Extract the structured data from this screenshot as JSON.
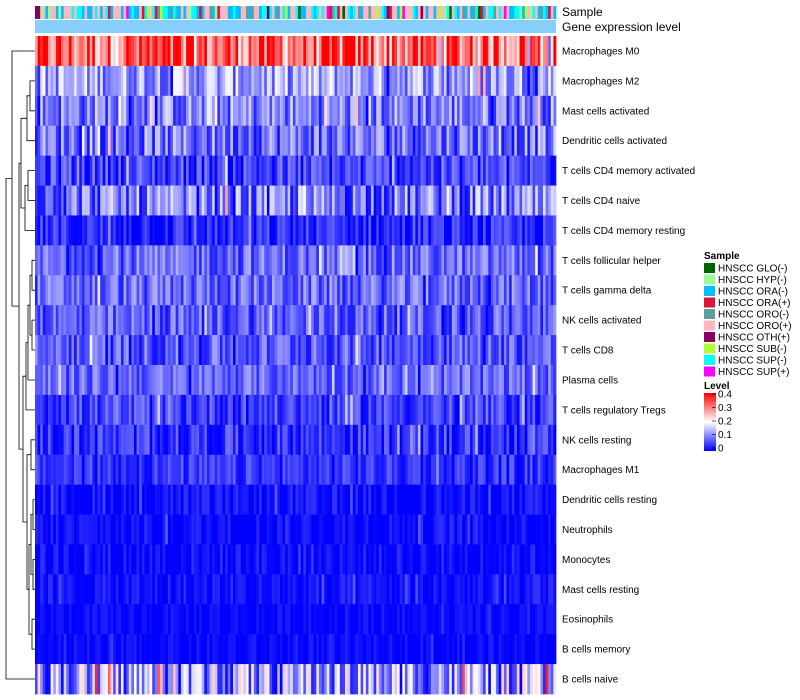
{
  "chart_data": {
    "type": "heatmap",
    "annotation_labels": {
      "sample": "Sample",
      "gene_expression": "Gene expression level"
    },
    "rows": [
      {
        "label": "Macrophages M0",
        "mean": 0.32,
        "spread": 0.12
      },
      {
        "label": "Macrophages M2",
        "mean": 0.13,
        "spread": 0.08
      },
      {
        "label": "Mast cells activated",
        "mean": 0.1,
        "spread": 0.08
      },
      {
        "label": "Dendritic cells activated",
        "mean": 0.09,
        "spread": 0.08
      },
      {
        "label": "T cells CD4 memory activated",
        "mean": 0.05,
        "spread": 0.06
      },
      {
        "label": "T cells CD4 naive",
        "mean": 0.09,
        "spread": 0.09
      },
      {
        "label": "T cells CD4 memory resting",
        "mean": 0.03,
        "spread": 0.05
      },
      {
        "label": "T cells follicular helper",
        "mean": 0.08,
        "spread": 0.06
      },
      {
        "label": "T cells gamma delta",
        "mean": 0.08,
        "spread": 0.06
      },
      {
        "label": "NK cells activated",
        "mean": 0.07,
        "spread": 0.06
      },
      {
        "label": "T cells CD8",
        "mean": 0.07,
        "spread": 0.06
      },
      {
        "label": "Plasma cells",
        "mean": 0.08,
        "spread": 0.05
      },
      {
        "label": "T cells regulatory  Tregs",
        "mean": 0.05,
        "spread": 0.05
      },
      {
        "label": "NK cells resting",
        "mean": 0.04,
        "spread": 0.05
      },
      {
        "label": "Macrophages M1",
        "mean": 0.04,
        "spread": 0.04
      },
      {
        "label": "Dendritic cells resting",
        "mean": 0.01,
        "spread": 0.03
      },
      {
        "label": "Neutrophils",
        "mean": 0.01,
        "spread": 0.03
      },
      {
        "label": "Monocytes",
        "mean": 0.01,
        "spread": 0.03
      },
      {
        "label": "Mast cells resting",
        "mean": 0.01,
        "spread": 0.03
      },
      {
        "label": "Eosinophils",
        "mean": 0.005,
        "spread": 0.02
      },
      {
        "label": "B cells memory",
        "mean": 0.005,
        "spread": 0.02
      },
      {
        "label": "B cells naive",
        "mean": 0.12,
        "spread": 0.12
      }
    ],
    "n_samples": 200,
    "sample_groups": [
      {
        "label": "HNSCC GLO(-)",
        "color": "#006400"
      },
      {
        "label": "HNSCC HYP(-)",
        "color": "#98FB98"
      },
      {
        "label": "HNSCC ORA(-)",
        "color": "#00BFFF"
      },
      {
        "label": "HNSCC ORA(+)",
        "color": "#DC143C"
      },
      {
        "label": "HNSCC ORO(-)",
        "color": "#5F9EA0"
      },
      {
        "label": "HNSCC ORO(+)",
        "color": "#FFB6C1"
      },
      {
        "label": "HNSCC OTH(+)",
        "color": "#8B0060"
      },
      {
        "label": "HNSCC SUB(-)",
        "color": "#ADFF2F"
      },
      {
        "label": "HNSCC SUP(-)",
        "color": "#00FFFF"
      },
      {
        "label": "HNSCC SUP(+)",
        "color": "#FF00FF"
      }
    ],
    "sample_group_weights": [
      1,
      2,
      14,
      2,
      4,
      22,
      1,
      1,
      10,
      1
    ],
    "gene_expression_color": "#87CEFA",
    "legend": {
      "sample_title": "Sample",
      "level_title": "Level",
      "level_ticks": [
        "0.4",
        "0.3",
        "0.2",
        "0.1",
        "0"
      ],
      "level_values": [
        0.4,
        0.3,
        0.2,
        0.1,
        0
      ],
      "placement": "right"
    },
    "color_scale": {
      "min": 0,
      "mid": 0.2,
      "max": 0.4,
      "low": "#0000FF",
      "midcolor": "#FFFFFF",
      "high": "#FF0000"
    }
  }
}
